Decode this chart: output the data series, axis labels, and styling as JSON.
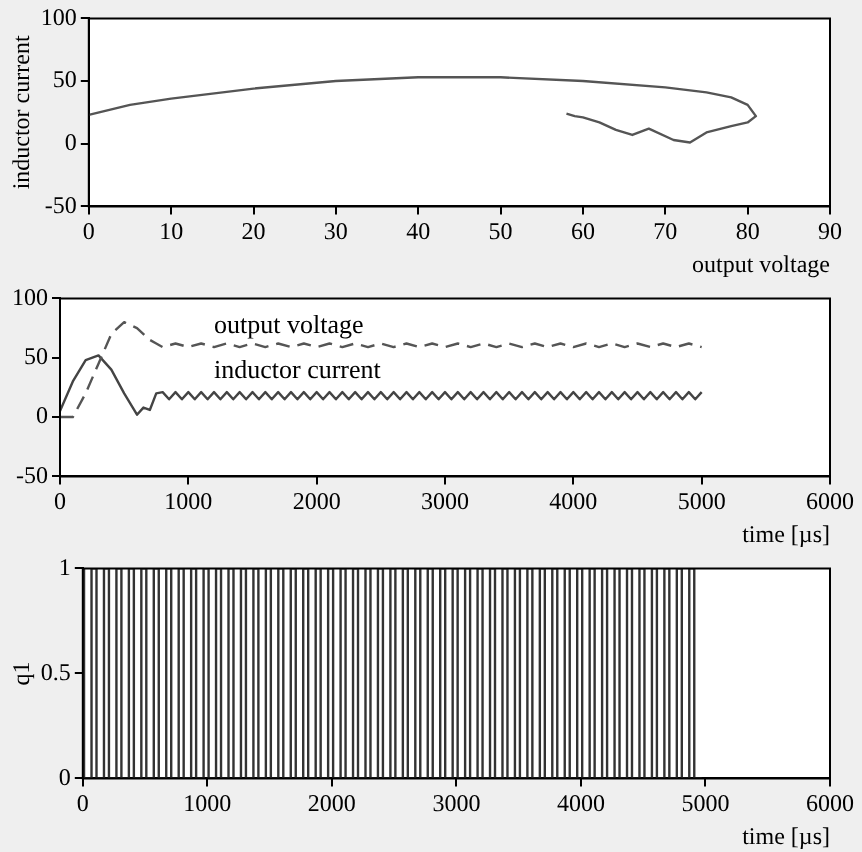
{
  "chart_data": [
    {
      "type": "line",
      "xlabel": "output voltage",
      "ylabel": "inductor current",
      "xlim": [
        0,
        90
      ],
      "xticks": [
        0,
        10,
        20,
        30,
        40,
        50,
        60,
        70,
        80,
        90
      ],
      "ylim": [
        -50,
        100
      ],
      "yticks": [
        -50,
        0,
        50,
        100
      ],
      "series": [
        {
          "color": "#555555",
          "x": [
            0,
            5,
            10,
            20,
            30,
            40,
            50,
            60,
            70,
            75,
            78,
            80,
            81,
            80,
            78,
            75,
            73,
            71,
            68,
            66,
            64,
            62,
            61,
            60,
            59,
            58
          ],
          "values": [
            23,
            31,
            36,
            44,
            50,
            53,
            53,
            50,
            45,
            41,
            37,
            31,
            22,
            17,
            14,
            9,
            1,
            3,
            12,
            7,
            11,
            17,
            19,
            21,
            22,
            24
          ]
        }
      ]
    },
    {
      "type": "line",
      "xlabel": "time [µs]",
      "xlim": [
        0,
        6000
      ],
      "xticks": [
        0,
        1000,
        2000,
        3000,
        4000,
        5000,
        6000
      ],
      "ylim": [
        -50,
        100
      ],
      "yticks": [
        -50,
        0,
        50,
        100
      ],
      "series": [
        {
          "name": "output voltage",
          "color": "#555555",
          "line_style": "dashed",
          "x": [
            0,
            100,
            200,
            300,
            400,
            500,
            600,
            700,
            750,
            800,
            900,
            1000,
            1100,
            1200,
            1300,
            1400,
            1500,
            1600,
            1700,
            1800,
            1900,
            2000,
            2100,
            2200,
            2300,
            2400,
            2500,
            2600,
            2700,
            2800,
            2900,
            3000,
            3100,
            3200,
            3300,
            3400,
            3500,
            3600,
            3700,
            3800,
            3900,
            4000,
            4100,
            4200,
            4300,
            4400,
            4500,
            4600,
            4700,
            4800,
            4900,
            5000
          ],
          "values": [
            0,
            0,
            20,
            45,
            70,
            80,
            75,
            65,
            62,
            59,
            62,
            59,
            62,
            59,
            62,
            59,
            62,
            59,
            62,
            59,
            62,
            59,
            62,
            59,
            62,
            59,
            62,
            59,
            62,
            59,
            62,
            59,
            62,
            59,
            62,
            59,
            62,
            59,
            62,
            59,
            62,
            59,
            62,
            59,
            62,
            59,
            62,
            59,
            62,
            59,
            62,
            59
          ]
        },
        {
          "name": "inductor current",
          "color": "#444444",
          "line_style": "solid",
          "x": [
            0,
            100,
            200,
            300,
            400,
            500,
            600,
            650,
            700,
            750,
            800,
            850,
            900,
            950,
            1000,
            1050,
            1100,
            1150,
            1200,
            1250,
            1300,
            1350,
            1400,
            1450,
            1500,
            1550,
            1600,
            1650,
            1700,
            1750,
            1800,
            1850,
            1900,
            1950,
            2000,
            2050,
            2100,
            2150,
            2200,
            2250,
            2300,
            2350,
            2400,
            2450,
            2500,
            2550,
            2600,
            2650,
            2700,
            2750,
            2800,
            2850,
            2900,
            2950,
            3000,
            3050,
            3100,
            3150,
            3200,
            3250,
            3300,
            3350,
            3400,
            3450,
            3500,
            3550,
            3600,
            3650,
            3700,
            3750,
            3800,
            3850,
            3900,
            3950,
            4000,
            4050,
            4100,
            4150,
            4200,
            4250,
            4300,
            4350,
            4400,
            4450,
            4500,
            4550,
            4600,
            4650,
            4700,
            4750,
            4800,
            4850,
            4900,
            4950,
            5000
          ],
          "values": [
            5,
            30,
            48,
            52,
            40,
            20,
            2,
            8,
            6,
            20,
            21,
            15,
            21,
            15,
            21,
            15,
            21,
            15,
            21,
            15,
            21,
            15,
            21,
            15,
            21,
            15,
            21,
            15,
            21,
            15,
            21,
            15,
            21,
            15,
            21,
            15,
            21,
            15,
            21,
            15,
            21,
            15,
            21,
            15,
            21,
            15,
            21,
            15,
            21,
            15,
            21,
            15,
            21,
            15,
            21,
            15,
            21,
            15,
            21,
            15,
            21,
            15,
            21,
            15,
            21,
            15,
            21,
            15,
            21,
            15,
            21,
            15,
            21,
            15,
            21,
            15,
            21,
            15,
            21,
            15,
            21,
            15,
            21,
            15,
            21,
            15,
            21,
            15,
            21,
            15,
            21,
            15,
            21,
            15,
            21
          ]
        }
      ]
    },
    {
      "type": "step",
      "xlabel": "time [µs]",
      "ylabel": "q1",
      "xlim": [
        0,
        6000
      ],
      "xticks": [
        0,
        1000,
        2000,
        3000,
        4000,
        5000,
        6000
      ],
      "ylim": [
        0,
        1
      ],
      "yticks": [
        0,
        0.5,
        1
      ],
      "series": [
        {
          "color": "#333333",
          "x": [
            0,
            10,
            70,
            110,
            170,
            210,
            270,
            310,
            370,
            410,
            470,
            510,
            570,
            610,
            670,
            710,
            770,
            810,
            870,
            910,
            970,
            1010,
            1070,
            1110,
            1170,
            1210,
            1270,
            1310,
            1370,
            1410,
            1470,
            1510,
            1570,
            1610,
            1670,
            1710,
            1770,
            1810,
            1870,
            1910,
            1970,
            2010,
            2070,
            2110,
            2170,
            2210,
            2270,
            2310,
            2370,
            2410,
            2470,
            2510,
            2570,
            2610,
            2670,
            2710,
            2770,
            2810,
            2870,
            2910,
            2970,
            3010,
            3070,
            3110,
            3170,
            3210,
            3270,
            3310,
            3370,
            3410,
            3470,
            3510,
            3570,
            3610,
            3670,
            3710,
            3770,
            3810,
            3870,
            3910,
            3970,
            4010,
            4070,
            4110,
            4170,
            4210,
            4270,
            4310,
            4370,
            4410,
            4470,
            4510,
            4570,
            4610,
            4670,
            4710,
            4770,
            4810,
            4870,
            4910,
            4970
          ],
          "values": [
            0,
            1,
            0,
            1,
            0,
            1,
            0,
            1,
            0,
            1,
            0,
            1,
            0,
            1,
            0,
            1,
            0,
            1,
            0,
            1,
            0,
            1,
            0,
            1,
            0,
            1,
            0,
            1,
            0,
            1,
            0,
            1,
            0,
            1,
            0,
            1,
            0,
            1,
            0,
            1,
            0,
            1,
            0,
            1,
            0,
            1,
            0,
            1,
            0,
            1,
            0,
            1,
            0,
            1,
            0,
            1,
            0,
            1,
            0,
            1,
            0,
            1,
            0,
            1,
            0,
            1,
            0,
            1,
            0,
            1,
            0,
            1,
            0,
            1,
            0,
            1,
            0,
            1,
            0,
            1,
            0,
            1,
            0,
            1,
            0,
            1,
            0,
            1,
            0,
            1,
            0,
            1,
            0,
            1,
            0,
            1,
            0,
            1,
            0,
            1,
            0
          ]
        }
      ]
    }
  ]
}
